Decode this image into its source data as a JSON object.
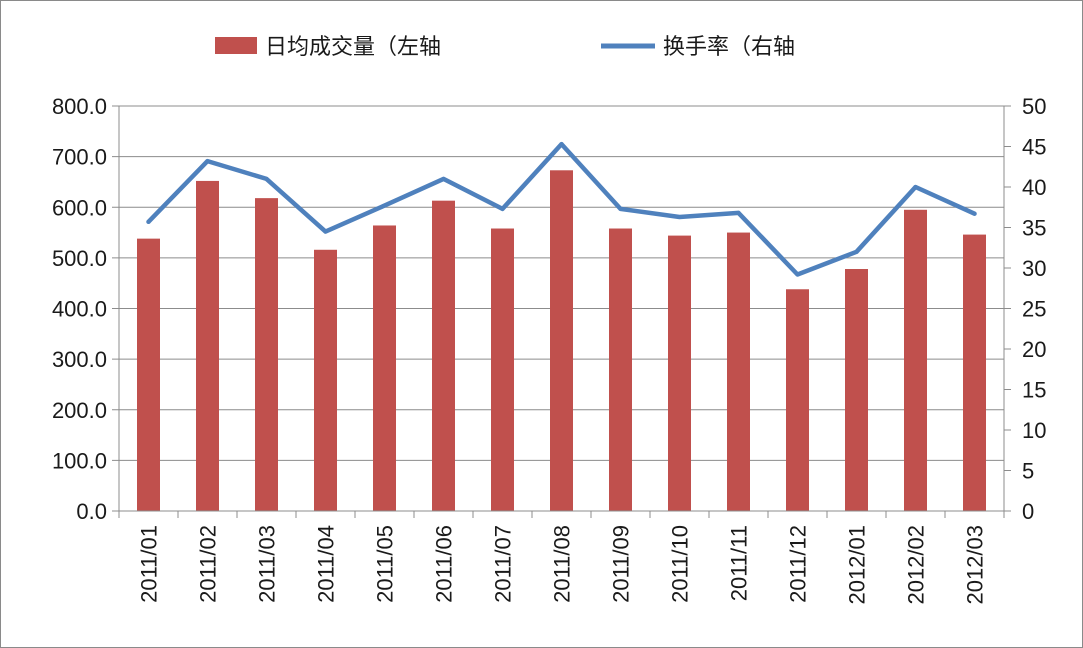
{
  "chart_data": {
    "type": "bar+line",
    "categories": [
      "2011/01",
      "2011/02",
      "2011/03",
      "2011/04",
      "2011/05",
      "2011/06",
      "2011/07",
      "2011/08",
      "2011/09",
      "2011/10",
      "2011/11",
      "2011/12",
      "2012/01",
      "2012/02",
      "2012/03"
    ],
    "series": [
      {
        "name": "日均成交量（左轴",
        "type": "bar",
        "axis": "left",
        "color": "#c0504d",
        "values": [
          538,
          652,
          618,
          516,
          564,
          613,
          558,
          673,
          558,
          544,
          550,
          438,
          478,
          595,
          546
        ]
      },
      {
        "name": "换手率（右轴",
        "type": "line",
        "axis": "right",
        "color": "#4f81bd",
        "values": [
          35.7,
          43.2,
          41.0,
          34.5,
          37.7,
          41.0,
          37.3,
          45.3,
          37.3,
          36.3,
          36.8,
          29.2,
          32.0,
          40.0,
          36.7
        ]
      }
    ],
    "left_axis": {
      "min": 0,
      "max": 800,
      "step": 100,
      "tick_labels": [
        "0.0",
        "100.0",
        "200.0",
        "300.0",
        "400.0",
        "500.0",
        "600.0",
        "700.0",
        "800.0"
      ]
    },
    "right_axis": {
      "min": 0,
      "max": 50,
      "step": 5,
      "tick_labels": [
        "0",
        "5",
        "10",
        "15",
        "20",
        "25",
        "30",
        "35",
        "40",
        "45",
        "50"
      ]
    },
    "grid": true,
    "legend_position": "top-center"
  }
}
